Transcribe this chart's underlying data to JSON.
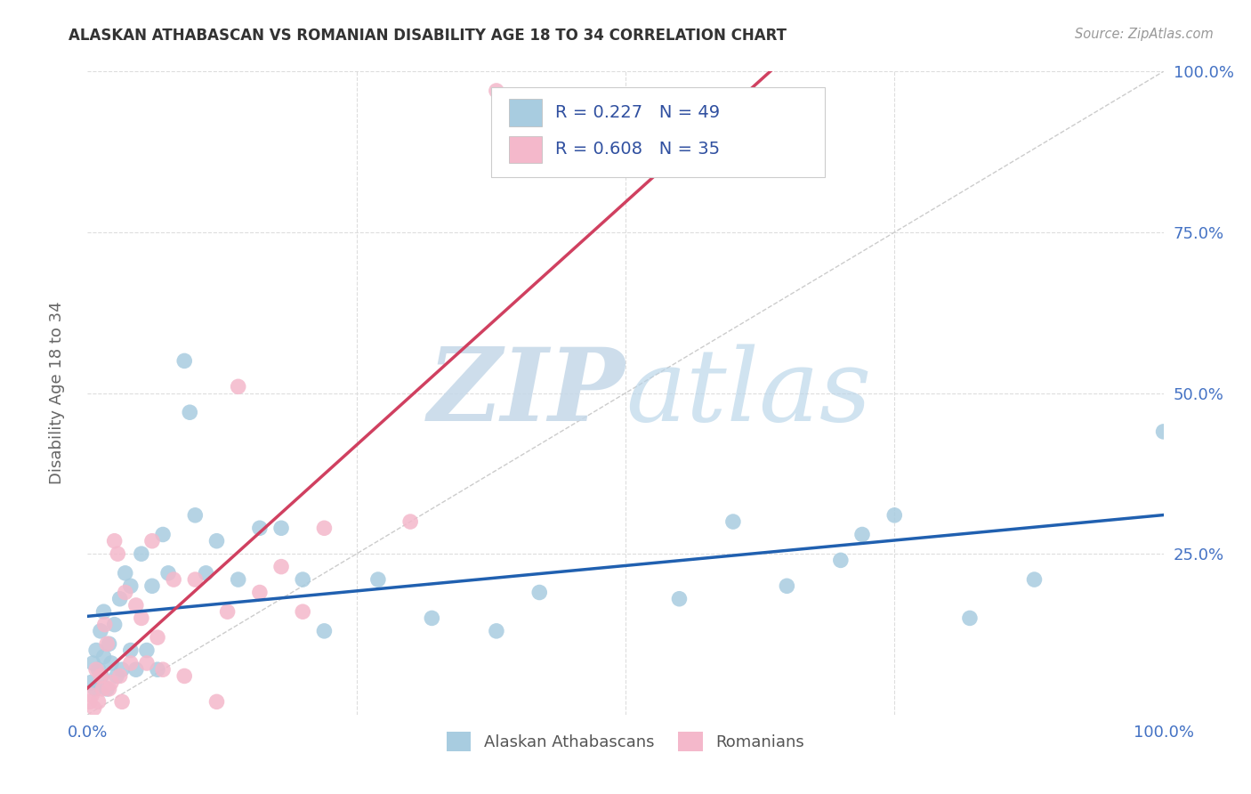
{
  "title": "ALASKAN ATHABASCAN VS ROMANIAN DISABILITY AGE 18 TO 34 CORRELATION CHART",
  "source": "Source: ZipAtlas.com",
  "ylabel": "Disability Age 18 to 34",
  "r1": 0.227,
  "n1": 49,
  "r2": 0.608,
  "n2": 35,
  "legend_label1": "Alaskan Athabascans",
  "legend_label2": "Romanians",
  "blue_color": "#a8cce0",
  "pink_color": "#f4b8cb",
  "blue_line_color": "#2060b0",
  "pink_line_color": "#d04060",
  "title_color": "#333333",
  "source_color": "#999999",
  "tick_color": "#4472c4",
  "ylabel_color": "#666666",
  "watermark": "ZIPatlas",
  "blue_points_x": [
    0.003,
    0.005,
    0.007,
    0.008,
    0.01,
    0.012,
    0.013,
    0.015,
    0.015,
    0.018,
    0.02,
    0.022,
    0.025,
    0.027,
    0.03,
    0.032,
    0.035,
    0.04,
    0.04,
    0.045,
    0.05,
    0.055,
    0.06,
    0.065,
    0.07,
    0.075,
    0.09,
    0.095,
    0.1,
    0.11,
    0.12,
    0.14,
    0.16,
    0.18,
    0.2,
    0.22,
    0.27,
    0.32,
    0.38,
    0.42,
    0.55,
    0.6,
    0.65,
    0.7,
    0.72,
    0.75,
    0.82,
    0.88,
    1.0
  ],
  "blue_points_y": [
    0.05,
    0.08,
    0.04,
    0.1,
    0.07,
    0.13,
    0.06,
    0.16,
    0.09,
    0.04,
    0.11,
    0.08,
    0.14,
    0.06,
    0.18,
    0.07,
    0.22,
    0.1,
    0.2,
    0.07,
    0.25,
    0.1,
    0.2,
    0.07,
    0.28,
    0.22,
    0.55,
    0.47,
    0.31,
    0.22,
    0.27,
    0.21,
    0.29,
    0.29,
    0.21,
    0.13,
    0.21,
    0.15,
    0.13,
    0.19,
    0.18,
    0.3,
    0.2,
    0.24,
    0.28,
    0.31,
    0.15,
    0.21,
    0.44
  ],
  "pink_points_x": [
    0.002,
    0.004,
    0.006,
    0.008,
    0.01,
    0.012,
    0.014,
    0.016,
    0.018,
    0.02,
    0.022,
    0.025,
    0.028,
    0.03,
    0.032,
    0.035,
    0.04,
    0.045,
    0.05,
    0.055,
    0.06,
    0.065,
    0.07,
    0.08,
    0.09,
    0.1,
    0.12,
    0.13,
    0.14,
    0.16,
    0.18,
    0.2,
    0.22,
    0.3,
    0.38
  ],
  "pink_points_y": [
    0.02,
    0.03,
    0.01,
    0.07,
    0.02,
    0.06,
    0.04,
    0.14,
    0.11,
    0.04,
    0.05,
    0.27,
    0.25,
    0.06,
    0.02,
    0.19,
    0.08,
    0.17,
    0.15,
    0.08,
    0.27,
    0.12,
    0.07,
    0.21,
    0.06,
    0.21,
    0.02,
    0.16,
    0.51,
    0.19,
    0.23,
    0.16,
    0.29,
    0.3,
    0.97
  ]
}
